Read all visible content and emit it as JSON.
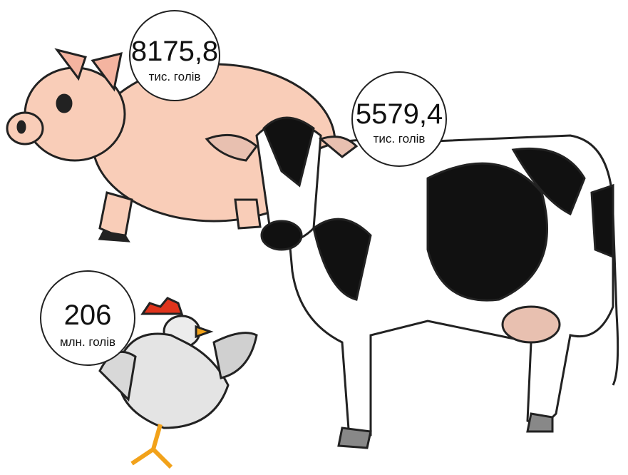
{
  "items": [
    {
      "value": "8175,8",
      "unit": "тис. голів"
    },
    {
      "value": "5579,4",
      "unit": "тис. голів"
    },
    {
      "value": "206",
      "unit": "млн. голів"
    }
  ]
}
